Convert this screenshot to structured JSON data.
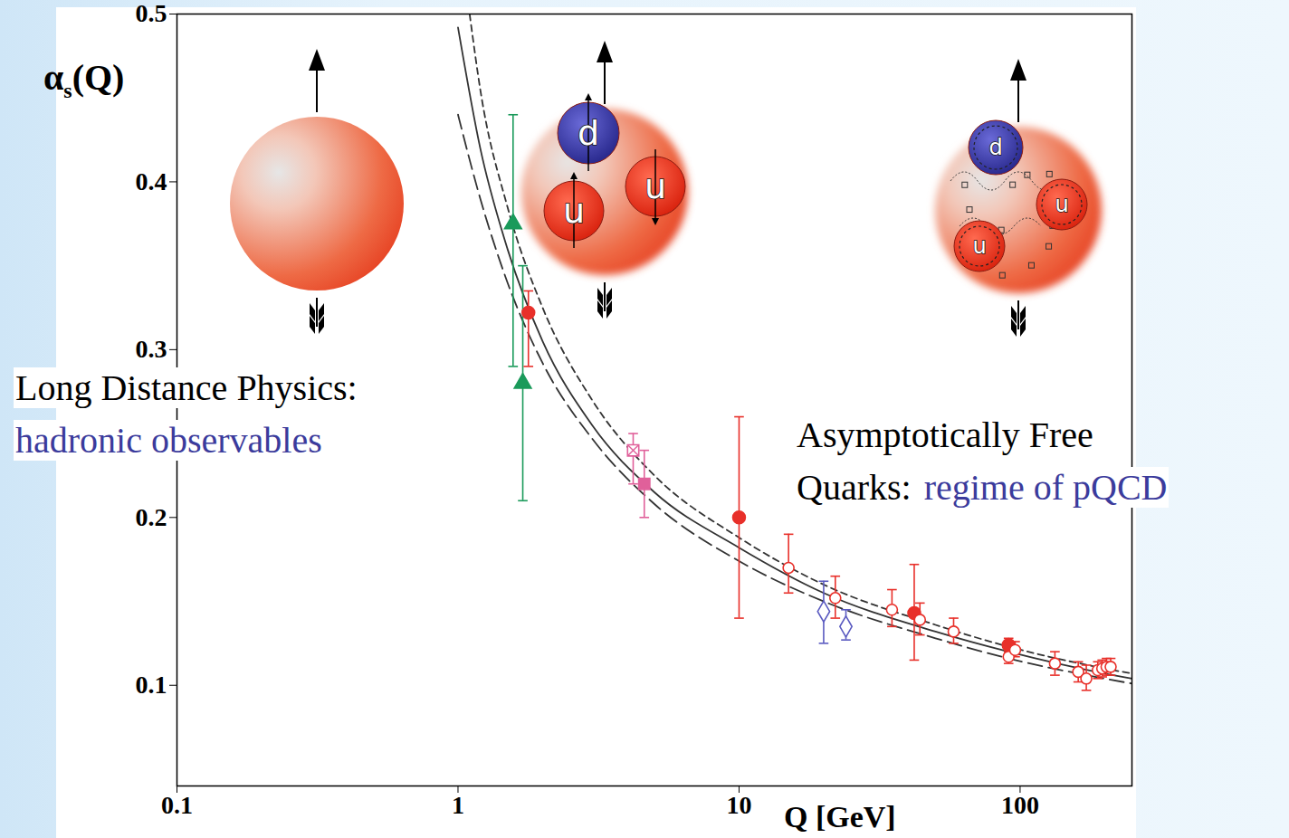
{
  "chart_data": {
    "type": "scatter",
    "y_label": "αs(Q)",
    "x_label": "Q [GeV]",
    "log": "x",
    "grid": false,
    "xlim": [
      0.1,
      250
    ],
    "xticks": [
      0.1,
      1,
      10,
      100
    ],
    "ylim": [
      0.04,
      0.5
    ],
    "yticks": [
      0.1,
      0.2,
      0.3,
      0.4,
      0.5
    ],
    "series": [
      {
        "type": "line",
        "color": "#333333",
        "line_style": "solid",
        "x": [
          1,
          1.2,
          1.5,
          2,
          3,
          5,
          10,
          20,
          50,
          91,
          200,
          250
        ],
        "values": [
          0.492,
          0.42,
          0.36,
          0.305,
          0.255,
          0.215,
          0.182,
          0.155,
          0.132,
          0.12,
          0.107,
          0.104
        ]
      },
      {
        "type": "line",
        "color": "#333333",
        "line_style": "dashed",
        "x": [
          1.1,
          1.2,
          1.5,
          2,
          3,
          5,
          10,
          20,
          50,
          91,
          200,
          250
        ],
        "values": [
          0.5,
          0.455,
          0.385,
          0.325,
          0.27,
          0.225,
          0.188,
          0.16,
          0.136,
          0.123,
          0.11,
          0.107
        ]
      },
      {
        "type": "line",
        "color": "#333333",
        "line_style": "long-dashed",
        "x": [
          1,
          1.2,
          1.5,
          2,
          3,
          5,
          10,
          20,
          50,
          91,
          200,
          250
        ],
        "values": [
          0.44,
          0.39,
          0.34,
          0.292,
          0.247,
          0.208,
          0.174,
          0.15,
          0.128,
          0.116,
          0.104,
          0.101
        ]
      },
      {
        "type": "scatter",
        "color": "#1a9a5a",
        "marker": "triangle",
        "x": [
          1.57,
          1.7
        ],
        "values": [
          0.375,
          0.28
        ],
        "error_low": [
          0.29,
          0.21
        ],
        "error_high": [
          0.44,
          0.35
        ]
      },
      {
        "type": "scatter",
        "color": "#e8302a",
        "marker": "circle",
        "x": [
          1.78,
          10,
          42,
          91
        ],
        "values": [
          0.322,
          0.2,
          0.143,
          0.124
        ],
        "error_low": [
          0.29,
          0.14,
          0.115,
          0.12
        ],
        "error_high": [
          0.335,
          0.26,
          0.172,
          0.128
        ]
      },
      {
        "type": "scatter",
        "color": "#e0609a",
        "marker": "square-x",
        "x": [
          4.2
        ],
        "values": [
          0.24
        ],
        "error_low": [
          0.22
        ],
        "error_high": [
          0.25
        ]
      },
      {
        "type": "scatter",
        "color": "#e0609a",
        "marker": "square",
        "x": [
          4.6
        ],
        "values": [
          0.22
        ],
        "error_low": [
          0.2
        ],
        "error_high": [
          0.24
        ]
      },
      {
        "type": "scatter",
        "color": "#5a5ac0",
        "marker": "open-diamond",
        "x": [
          20,
          24
        ],
        "values": [
          0.144,
          0.135
        ],
        "error_low": [
          0.125,
          0.127
        ],
        "error_high": [
          0.162,
          0.145
        ]
      },
      {
        "type": "scatter",
        "color": "#e8302a",
        "marker": "open-circle",
        "x": [
          15,
          22,
          35,
          44,
          58,
          91,
          96,
          133,
          161,
          172,
          189,
          196,
          203,
          210
        ],
        "values": [
          0.17,
          0.152,
          0.145,
          0.139,
          0.132,
          0.117,
          0.121,
          0.113,
          0.108,
          0.104,
          0.109,
          0.11,
          0.111,
          0.111
        ],
        "error_low": [
          0.155,
          0.14,
          0.135,
          0.13,
          0.125,
          0.113,
          0.117,
          0.106,
          0.102,
          0.097,
          0.104,
          0.105,
          0.106,
          0.106
        ],
        "error_high": [
          0.19,
          0.165,
          0.157,
          0.149,
          0.14,
          0.121,
          0.126,
          0.12,
          0.114,
          0.112,
          0.114,
          0.115,
          0.116,
          0.116
        ]
      }
    ],
    "annotations": [
      {
        "lines": [
          [
            {
              "text": "Long Distance Physics:",
              "color": "#000000"
            }
          ],
          [
            {
              "text": "hadronic observables",
              "color": "#3b3b9c"
            }
          ]
        ]
      },
      {
        "lines": [
          [
            {
              "text": "Asymptotically Free",
              "color": "#000000"
            }
          ],
          [
            {
              "text": "Quarks: ",
              "color": "#000000"
            },
            {
              "text": "regime of pQCD",
              "color": "#3b3b9c"
            }
          ]
        ]
      }
    ],
    "illustrations": [
      {
        "quarks": []
      },
      {
        "quarks": [
          "d",
          "u",
          "u"
        ]
      },
      {
        "quarks": [
          "d",
          "u",
          "u"
        ]
      }
    ]
  }
}
